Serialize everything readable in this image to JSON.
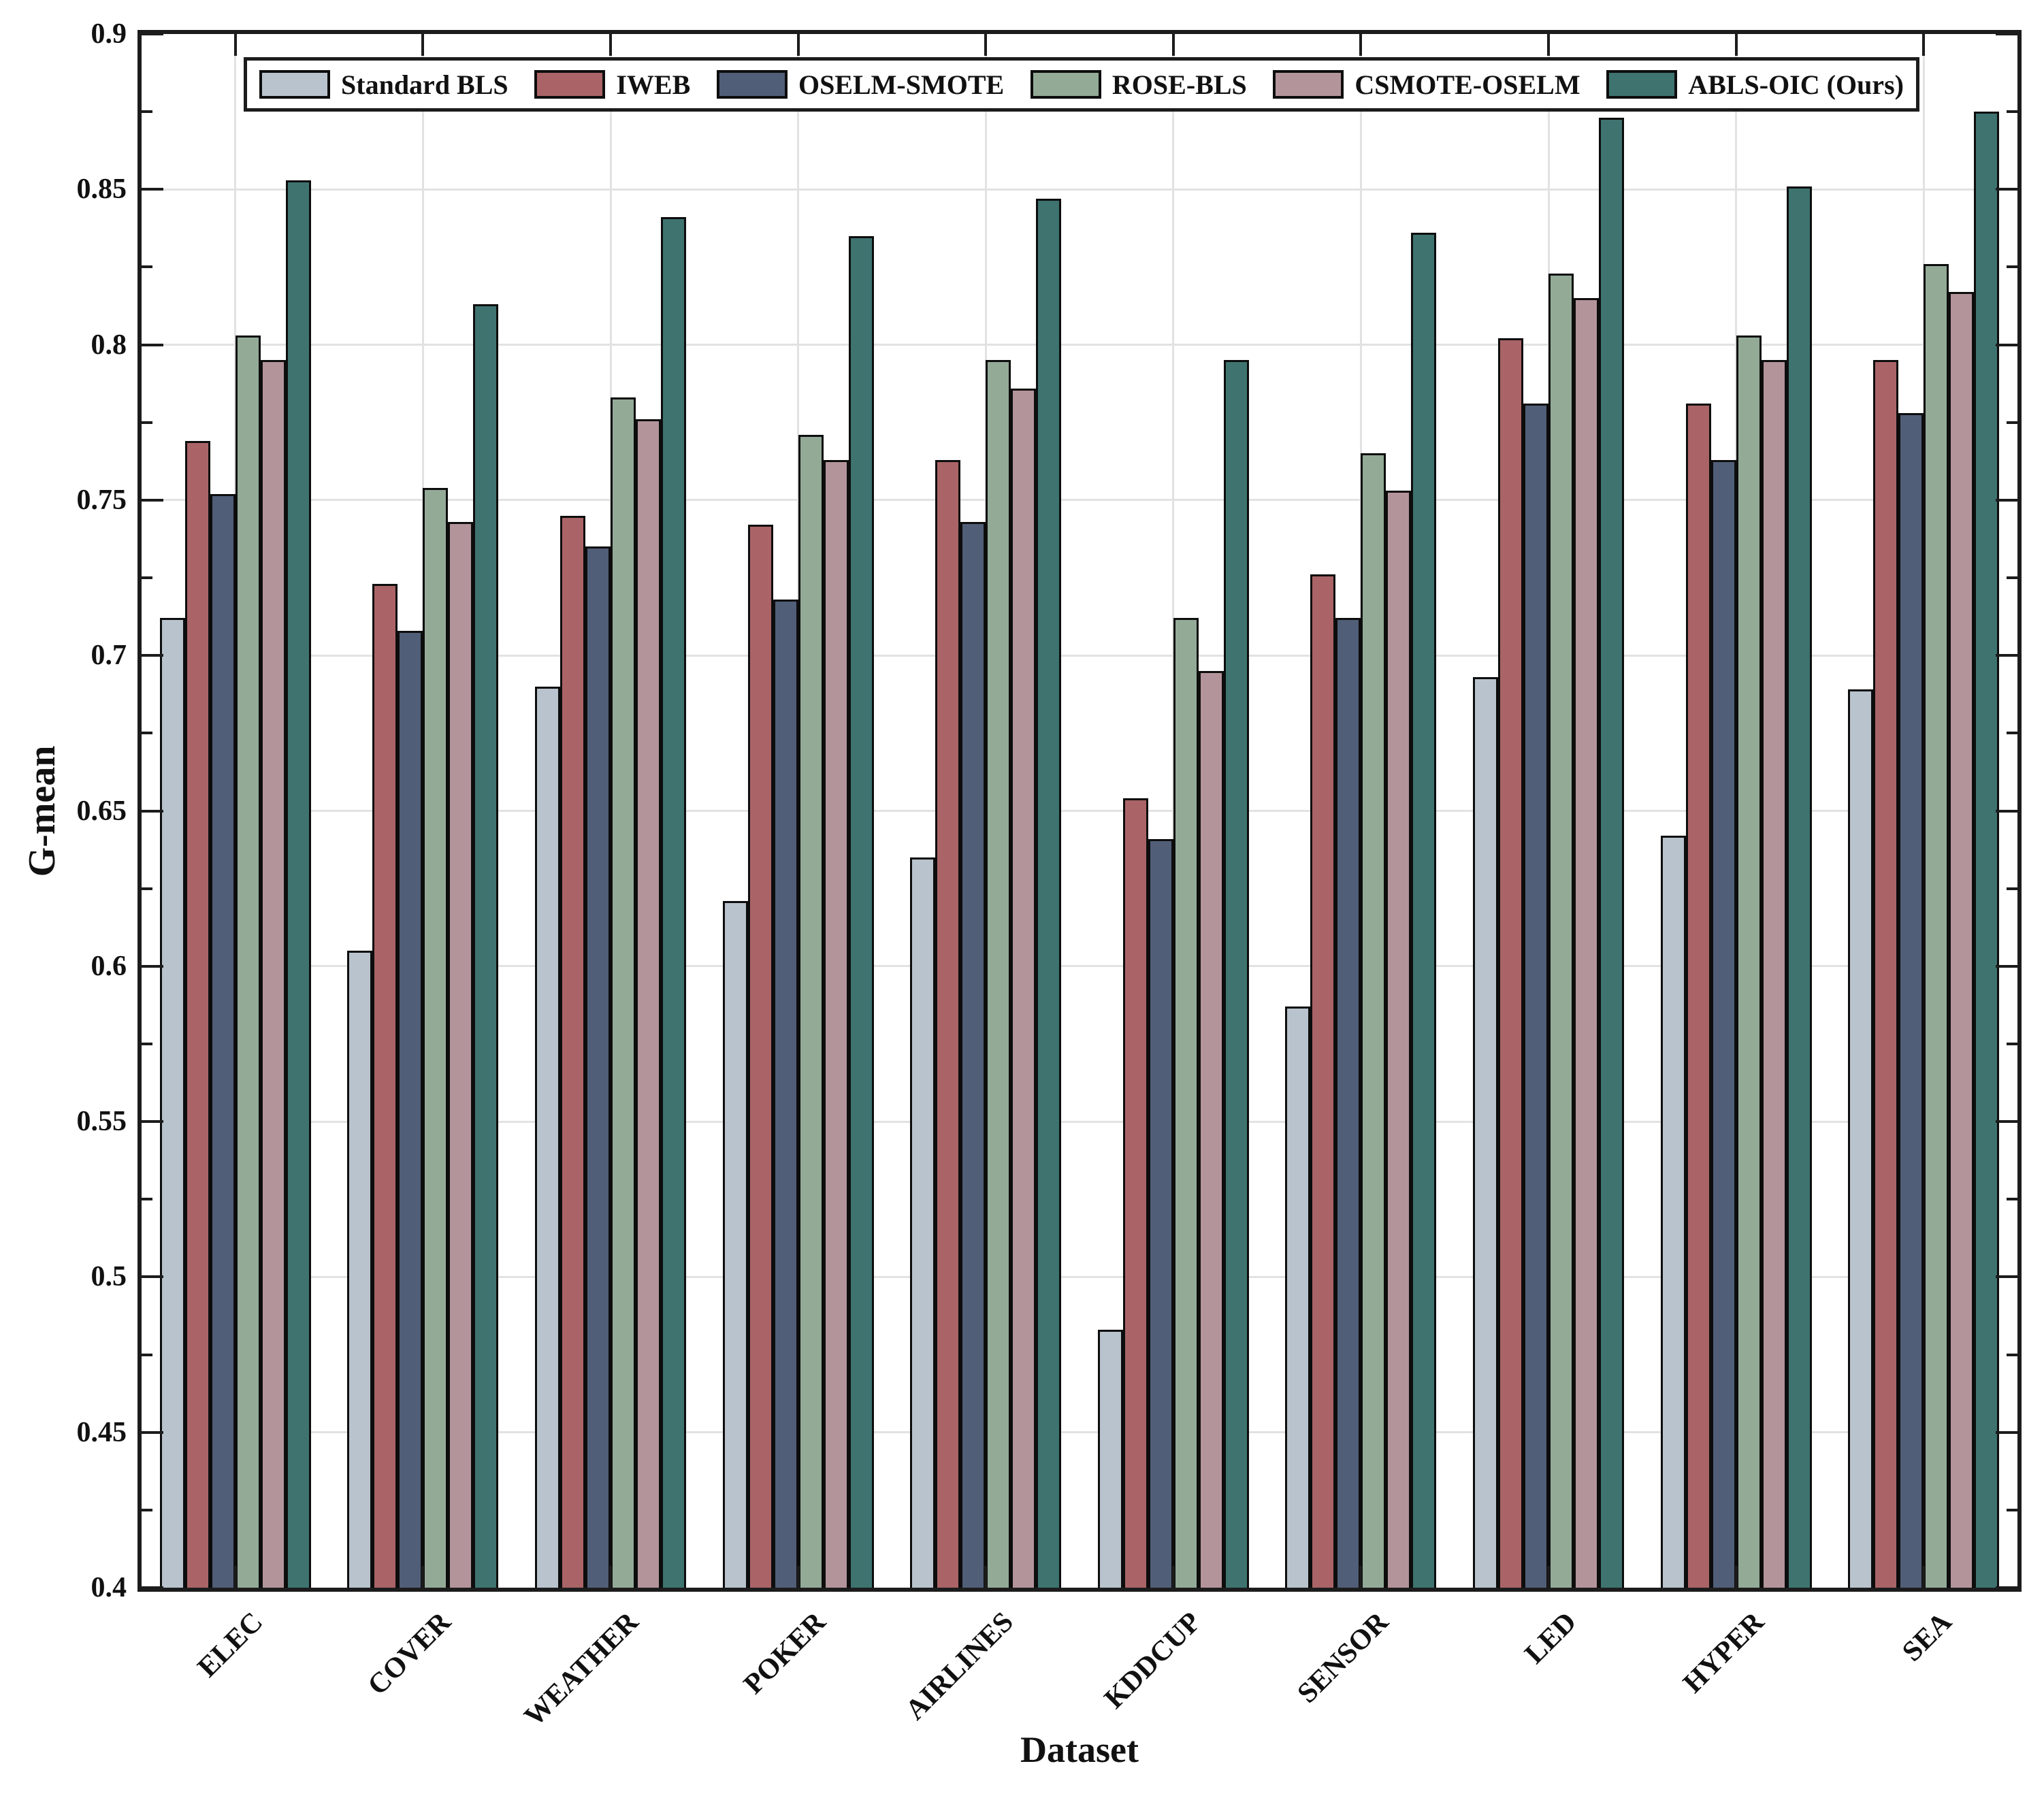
{
  "figure": {
    "background": "#ffffff",
    "axis_color": "#1c1c1c",
    "grid_color": "#e2e2e2",
    "bar_edge_color": "#0d0d0d"
  },
  "chart_data": {
    "type": "bar",
    "title": "",
    "xlabel": "Dataset",
    "ylabel": "G-mean",
    "ylim": [
      0.4,
      0.9
    ],
    "ytick_step": 0.05,
    "ytick_labels": [
      "0.4",
      "0.45",
      "0.5",
      "0.55",
      "0.6",
      "0.65",
      "0.7",
      "0.75",
      "0.8",
      "0.85",
      "0.9"
    ],
    "grid": "on",
    "legend_position": "top-inside",
    "categories": [
      "ELEC",
      "COVER",
      "WEATHER",
      "POKER",
      "AIRLINES",
      "KDDCUP",
      "SENSOR",
      "LED",
      "HYPER",
      "SEA"
    ],
    "series": [
      {
        "name": "Standard BLS",
        "color": "#b8c3cd",
        "values": [
          0.712,
          0.605,
          0.69,
          0.621,
          0.635,
          0.483,
          0.587,
          0.693,
          0.642,
          0.689
        ]
      },
      {
        "name": "IWEB",
        "color": "#aa6467",
        "values": [
          0.769,
          0.723,
          0.745,
          0.742,
          0.763,
          0.654,
          0.726,
          0.802,
          0.781,
          0.795
        ]
      },
      {
        "name": "OSELM-SMOTE",
        "color": "#515e78",
        "values": [
          0.752,
          0.708,
          0.735,
          0.718,
          0.743,
          0.641,
          0.712,
          0.781,
          0.763,
          0.778
        ]
      },
      {
        "name": "ROSE-BLS",
        "color": "#93aa97",
        "values": [
          0.803,
          0.754,
          0.783,
          0.771,
          0.795,
          0.712,
          0.765,
          0.823,
          0.803,
          0.826
        ]
      },
      {
        "name": "CSMOTE-OSELM",
        "color": "#b4949b",
        "values": [
          0.795,
          0.743,
          0.776,
          0.763,
          0.786,
          0.695,
          0.753,
          0.815,
          0.795,
          0.817
        ]
      },
      {
        "name": "ABLS-OIC (Ours)",
        "color": "#3e7370",
        "values": [
          0.853,
          0.813,
          0.841,
          0.835,
          0.847,
          0.795,
          0.836,
          0.873,
          0.851,
          0.875
        ]
      }
    ]
  }
}
